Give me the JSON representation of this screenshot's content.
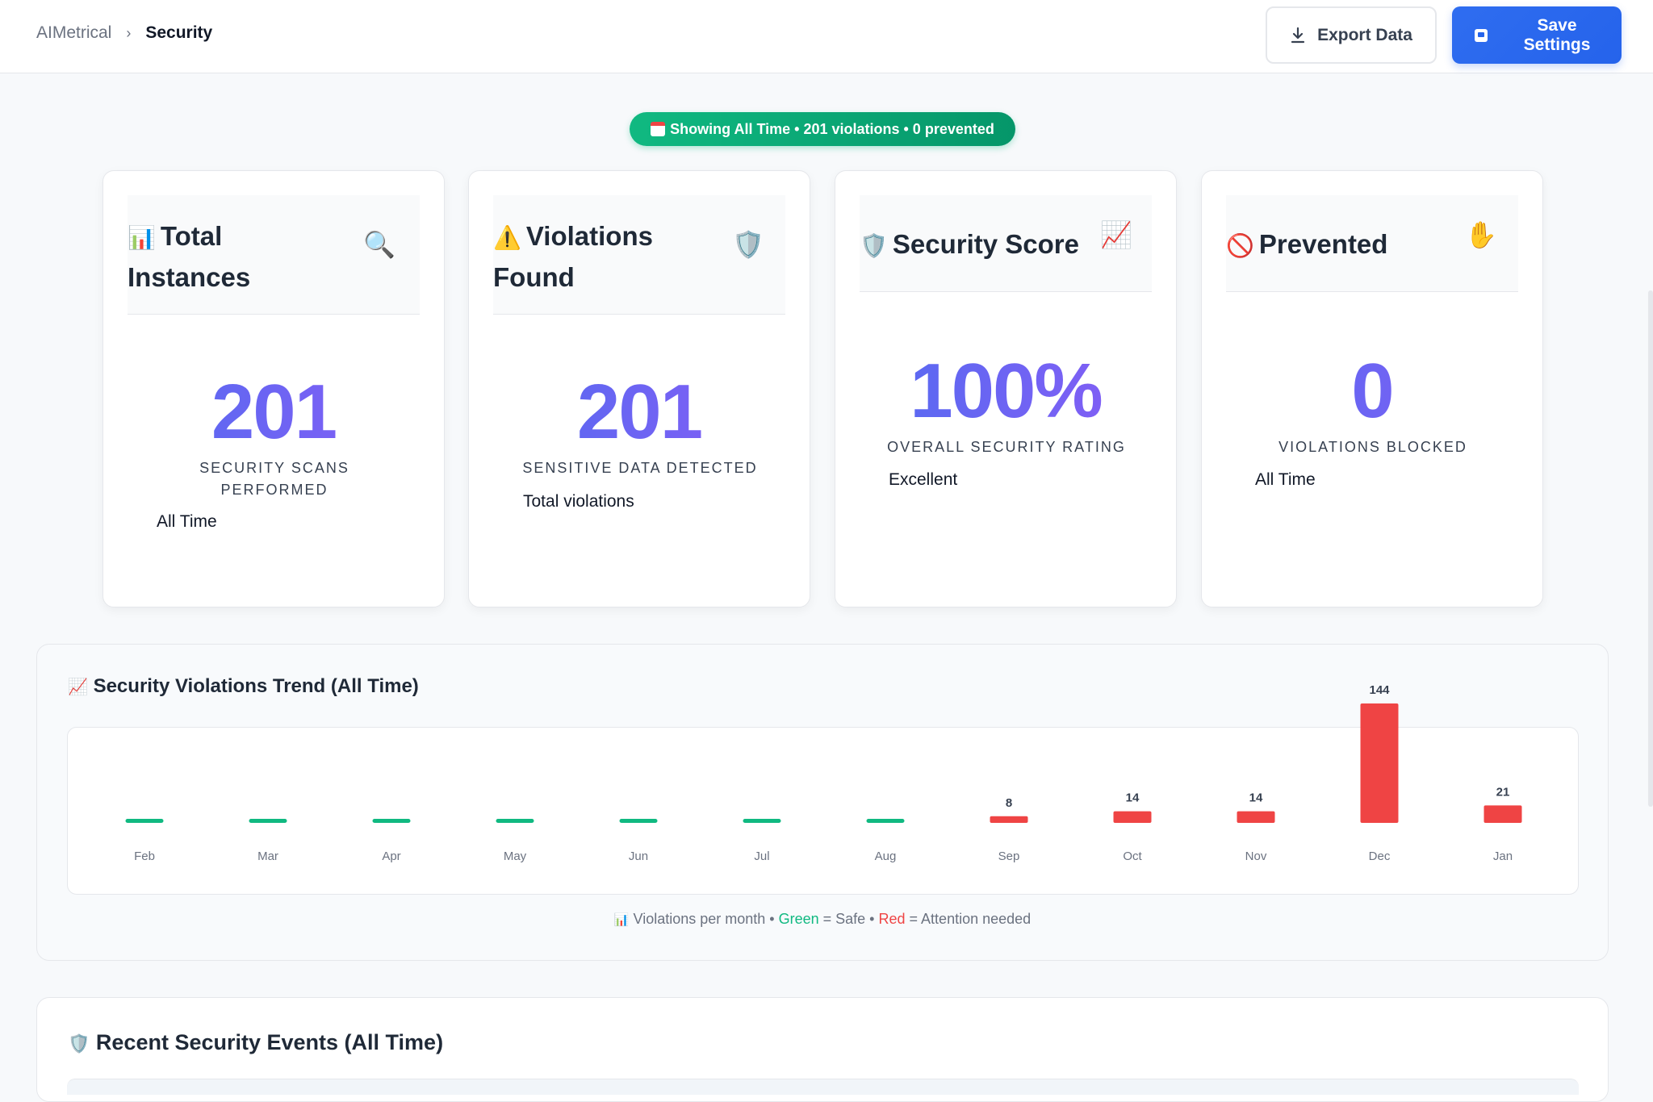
{
  "breadcrumb": {
    "root": "AIMetrical",
    "separator": "›",
    "current": "Security"
  },
  "actions": {
    "export_label": "Export Data",
    "save_label": "Save Settings"
  },
  "status_pill": {
    "text": "Showing All Time • 201 violations • 0 prevented"
  },
  "cards": [
    {
      "title_icon": "📊",
      "title": "Total Instances",
      "corner_icon": "🔍",
      "value": "201",
      "label": "SECURITY SCANS PERFORMED",
      "sub": "All Time"
    },
    {
      "title_icon": "⚠️",
      "title": "Violations Found",
      "corner_icon": "🛡️",
      "value": "201",
      "label": "SENSITIVE DATA DETECTED",
      "sub": "Total violations"
    },
    {
      "title_icon": "🛡️",
      "title": "Security Score",
      "corner_icon": "📈",
      "value": "100%",
      "label": "OVERALL SECURITY RATING",
      "sub": "Excellent"
    },
    {
      "title_icon": "🚫",
      "title": "Prevented",
      "corner_icon": "✋",
      "value": "0",
      "label": "VIOLATIONS BLOCKED",
      "sub": "All Time"
    }
  ],
  "trend": {
    "title_icon": "📈",
    "title": "Security Violations Trend (All Time)",
    "legend_icon": "📊",
    "legend_prefix": "Violations per month • ",
    "legend_green": "Green",
    "legend_green_suffix": " = Safe • ",
    "legend_red": "Red",
    "legend_red_suffix": " = Attention needed"
  },
  "chart_data": {
    "type": "bar",
    "categories": [
      "Feb",
      "Mar",
      "Apr",
      "May",
      "Jun",
      "Jul",
      "Aug",
      "Sep",
      "Oct",
      "Nov",
      "Dec",
      "Jan"
    ],
    "values": [
      0,
      0,
      0,
      0,
      0,
      0,
      0,
      8,
      14,
      14,
      144,
      21
    ],
    "data_labels": [
      "",
      "",
      "",
      "",
      "",
      "",
      "",
      "8",
      "14",
      "14",
      "144",
      "21"
    ],
    "title": "Security Violations Trend (All Time)",
    "colors": {
      "safe": "#10b981",
      "attention": "#ef4444"
    }
  },
  "events": {
    "title_icon": "🛡️",
    "title": "Recent Security Events (All Time)"
  }
}
